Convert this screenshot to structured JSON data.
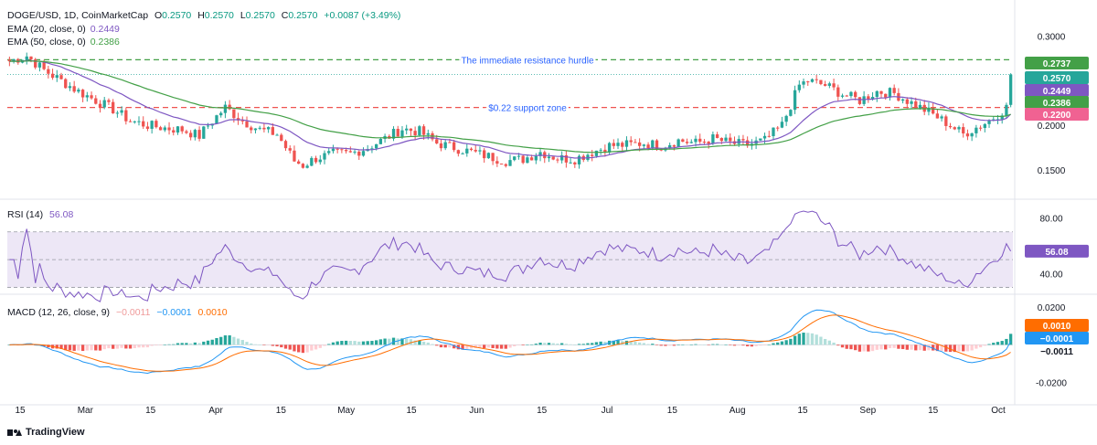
{
  "header": {
    "symbol": "DOGE/USD, 1D, CoinMarketCap",
    "o_label": "O",
    "o_value": "0.2570",
    "h_label": "H",
    "h_value": "0.2570",
    "l_label": "L",
    "l_value": "0.2570",
    "c_label": "C",
    "c_value": "0.2570",
    "change": "+0.0087 (+3.49%)",
    "ema20_label": "EMA (20, close, 0)",
    "ema20_value": "0.2449",
    "ema50_label": "EMA (50, close, 0)",
    "ema50_value": "0.2386",
    "rsi_label": "RSI (14)",
    "rsi_value": "56.08",
    "macd_label": "MACD (12, 26, close, 9)",
    "macd_hist_value": "−0.0011",
    "macd_value": "−0.0001",
    "signal_value": "0.0010"
  },
  "brand": {
    "name": "TradingView"
  },
  "colors": {
    "up": "#26a69a",
    "down": "#ef5350",
    "ema20": "#7e57c2",
    "ema50": "#43a047",
    "resistance": "#43a047",
    "support": "#ef5350",
    "last_price": "#26a69a",
    "rsi": "#7e57c2",
    "rsi_band": "#ede7f6",
    "macd": "#2196f3",
    "signal": "#ff6d00",
    "hist_up_strong": "#26a69a",
    "hist_up_weak": "#b2dfdb",
    "hist_down_strong": "#ef5350",
    "hist_down_weak": "#ffcdd2"
  },
  "chart_data": [
    {
      "type": "candlestick",
      "title": "DOGE/USD, 1D, CoinMarketCap",
      "x_ticks": [
        "15",
        "Mar",
        "15",
        "Apr",
        "15",
        "May",
        "15",
        "Jun",
        "15",
        "Jul",
        "15",
        "Aug",
        "15",
        "Sep",
        "15",
        "Oct"
      ],
      "y_ticks": [
        "0.3000",
        "0.2500",
        "0.2000",
        "0.1500"
      ],
      "ylim": [
        0.12,
        0.31
      ],
      "num_days": 233,
      "close_anchors": [
        [
          0,
          0.272
        ],
        [
          4,
          0.278
        ],
        [
          8,
          0.262
        ],
        [
          12,
          0.25
        ],
        [
          16,
          0.238
        ],
        [
          20,
          0.228
        ],
        [
          24,
          0.218
        ],
        [
          28,
          0.205
        ],
        [
          32,
          0.2
        ],
        [
          36,
          0.197
        ],
        [
          40,
          0.195
        ],
        [
          44,
          0.188
        ],
        [
          46,
          0.2
        ],
        [
          50,
          0.22
        ],
        [
          54,
          0.205
        ],
        [
          58,
          0.195
        ],
        [
          62,
          0.19
        ],
        [
          64,
          0.175
        ],
        [
          66,
          0.16
        ],
        [
          68,
          0.155
        ],
        [
          71,
          0.163
        ],
        [
          75,
          0.168
        ],
        [
          79,
          0.168
        ],
        [
          83,
          0.175
        ],
        [
          87,
          0.185
        ],
        [
          91,
          0.196
        ],
        [
          95,
          0.193
        ],
        [
          99,
          0.18
        ],
        [
          103,
          0.175
        ],
        [
          107,
          0.17
        ],
        [
          111,
          0.165
        ],
        [
          115,
          0.16
        ],
        [
          119,
          0.162
        ],
        [
          123,
          0.17
        ],
        [
          127,
          0.163
        ],
        [
          131,
          0.162
        ],
        [
          135,
          0.17
        ],
        [
          139,
          0.177
        ],
        [
          143,
          0.178
        ],
        [
          147,
          0.18
        ],
        [
          151,
          0.177
        ],
        [
          155,
          0.183
        ],
        [
          159,
          0.18
        ],
        [
          163,
          0.185
        ],
        [
          167,
          0.18
        ],
        [
          171,
          0.178
        ],
        [
          175,
          0.183
        ],
        [
          179,
          0.2
        ],
        [
          183,
          0.245
        ],
        [
          185,
          0.25
        ],
        [
          189,
          0.245
        ],
        [
          193,
          0.235
        ],
        [
          197,
          0.228
        ],
        [
          201,
          0.238
        ],
        [
          205,
          0.236
        ],
        [
          209,
          0.225
        ],
        [
          213,
          0.215
        ],
        [
          217,
          0.203
        ],
        [
          221,
          0.19
        ],
        [
          223,
          0.195
        ],
        [
          227,
          0.205
        ],
        [
          231,
          0.22
        ]
      ],
      "series": [
        {
          "name": "EMA (20, close, 0)",
          "last": 0.2449
        },
        {
          "name": "EMA (50, close, 0)",
          "last": 0.2386
        }
      ],
      "levels": [
        {
          "label": "0.2737",
          "value": 0.2737,
          "kind": "resistance",
          "annotation": "The immediate resistance hurdle"
        },
        {
          "label": "0.2570",
          "value": 0.257,
          "kind": "last-price"
        },
        {
          "label": "0.2449",
          "value": 0.2449,
          "kind": "ema20"
        },
        {
          "label": "0.2386",
          "value": 0.2386,
          "kind": "ema50"
        },
        {
          "label": "0.2200",
          "value": 0.22,
          "kind": "support",
          "annotation": "$0.22 support zone"
        }
      ]
    },
    {
      "type": "line",
      "title": "RSI (14)",
      "y_ticks": [
        "80.00",
        "40.00"
      ],
      "ylim": [
        25,
        87
      ],
      "band": [
        30,
        70
      ],
      "midline": 50,
      "series": [
        {
          "name": "RSI (14)",
          "last": 56.08
        }
      ]
    },
    {
      "type": "bar",
      "title": "MACD (12, 26, close, 9)",
      "y_ticks": [
        "0.0200",
        "-0.0200"
      ],
      "ylim": [
        -0.028,
        0.023
      ],
      "series": [
        {
          "name": "MACD",
          "last": -0.0001
        },
        {
          "name": "Signal",
          "last": 0.001
        },
        {
          "name": "Histogram",
          "last": -0.0011
        }
      ],
      "value_labels": [
        "0.0010",
        "−0.0001",
        "−0.0011"
      ]
    }
  ]
}
